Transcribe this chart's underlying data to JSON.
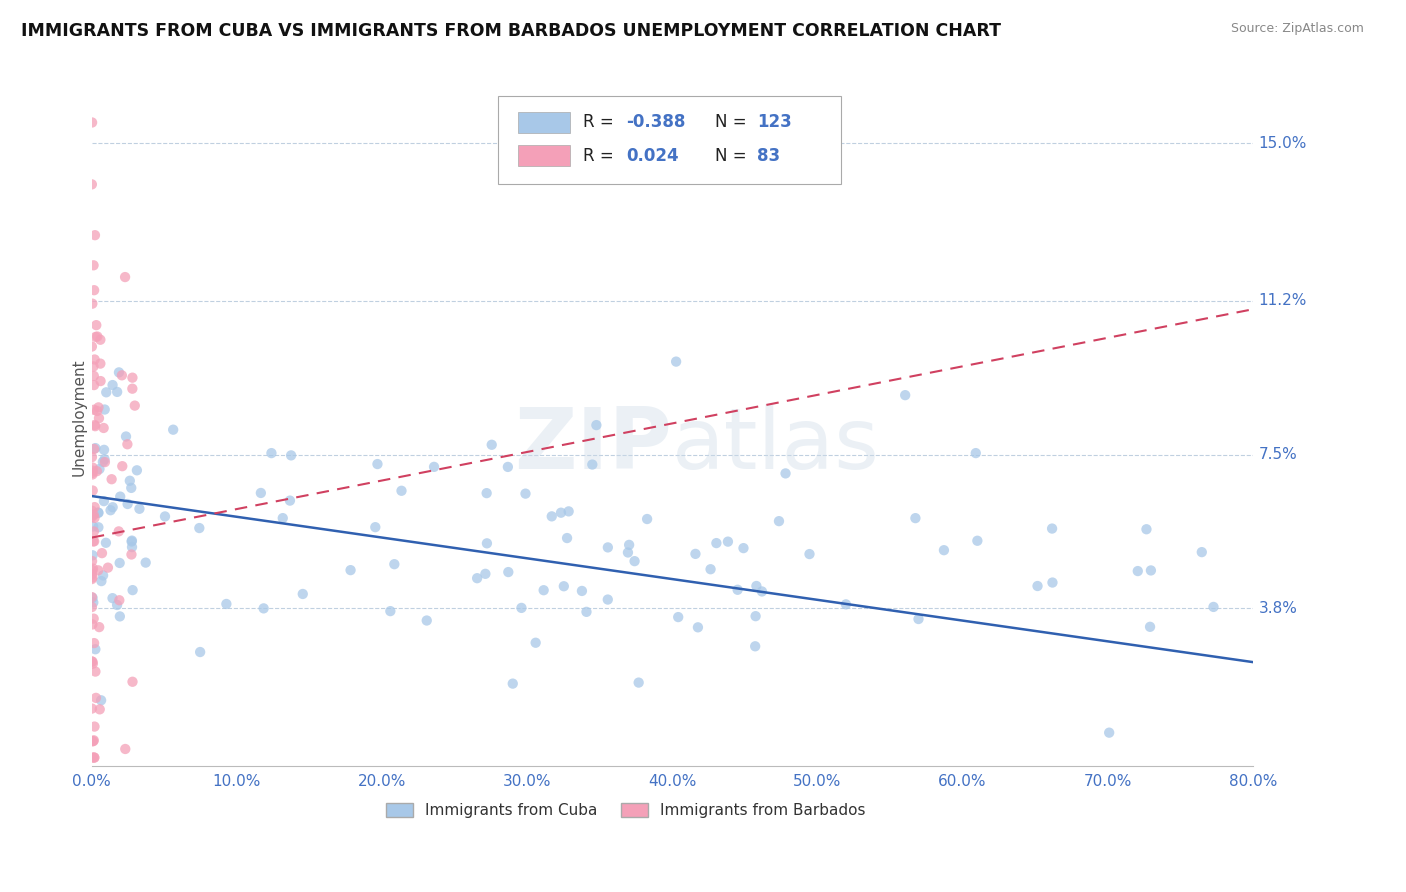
{
  "title": "IMMIGRANTS FROM CUBA VS IMMIGRANTS FROM BARBADOS UNEMPLOYMENT CORRELATION CHART",
  "source": "Source: ZipAtlas.com",
  "ylabel": "Unemployment",
  "x_min": 0.0,
  "x_max": 0.8,
  "y_min": 0.0,
  "y_max": 0.168,
  "y_ticks": [
    0.038,
    0.075,
    0.112,
    0.15
  ],
  "y_tick_labels": [
    "3.8%",
    "7.5%",
    "11.2%",
    "15.0%"
  ],
  "x_ticks": [
    0.0,
    0.1,
    0.2,
    0.3,
    0.4,
    0.5,
    0.6,
    0.7,
    0.8
  ],
  "x_tick_labels": [
    "0.0%",
    "10.0%",
    "20.0%",
    "30.0%",
    "40.0%",
    "50.0%",
    "60.0%",
    "70.0%",
    "80.0%"
  ],
  "cuba_color": "#a8c8e8",
  "barbados_color": "#f4a0b8",
  "cuba_trend_color": "#3060b0",
  "barbados_trend_color": "#d04060",
  "cuba_R": -0.388,
  "cuba_N": 123,
  "barbados_R": 0.024,
  "barbados_N": 83,
  "legend_label_cuba": "Immigrants from Cuba",
  "legend_label_barbados": "Immigrants from Barbados",
  "watermark_zip": "ZIP",
  "watermark_atlas": "atlas",
  "background_color": "#ffffff",
  "grid_color": "#c0d0e0",
  "title_color": "#111111",
  "source_color": "#888888",
  "tick_color": "#4472c4",
  "title_fontsize": 12.5,
  "axis_fontsize": 11,
  "tick_fontsize": 11,
  "legend_value_color": "#4472c4",
  "legend_label_color": "#333333"
}
